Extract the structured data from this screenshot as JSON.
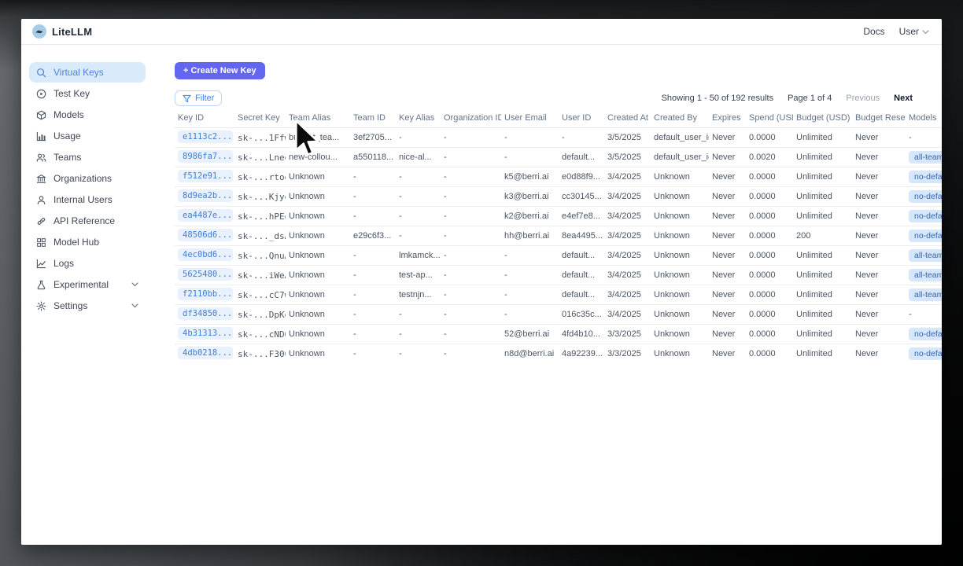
{
  "topbar": {
    "brand": "LiteLLM",
    "docs_link": "Docs",
    "user_label": "User"
  },
  "sidebar": {
    "items": [
      {
        "label": "Virtual Keys",
        "icon": "search-icon",
        "active": true,
        "expandable": false
      },
      {
        "label": "Test Key",
        "icon": "play-circle-icon",
        "active": false,
        "expandable": false
      },
      {
        "label": "Models",
        "icon": "cube-icon",
        "active": false,
        "expandable": false
      },
      {
        "label": "Usage",
        "icon": "bar-chart-icon",
        "active": false,
        "expandable": false
      },
      {
        "label": "Teams",
        "icon": "people-icon",
        "active": false,
        "expandable": false
      },
      {
        "label": "Organizations",
        "icon": "bank-icon",
        "active": false,
        "expandable": false
      },
      {
        "label": "Internal Users",
        "icon": "person-icon",
        "active": false,
        "expandable": false
      },
      {
        "label": "API Reference",
        "icon": "link-icon",
        "active": false,
        "expandable": false
      },
      {
        "label": "Model Hub",
        "icon": "grid-icon",
        "active": false,
        "expandable": false
      },
      {
        "label": "Logs",
        "icon": "line-chart-icon",
        "active": false,
        "expandable": false
      },
      {
        "label": "Experimental",
        "icon": "flask-icon",
        "active": false,
        "expandable": true
      },
      {
        "label": "Settings",
        "icon": "gear-icon",
        "active": false,
        "expandable": true
      }
    ]
  },
  "toolbar": {
    "create_button": "+ Create New Key",
    "filter_button": "Filter"
  },
  "pagination": {
    "showing": "Showing 1 - 50 of 192 results",
    "page": "Page 1 of 4",
    "previous": "Previous",
    "next": "Next"
  },
  "table": {
    "columns": [
      "Key ID",
      "Secret Key",
      "Team Alias",
      "Team ID",
      "Key Alias",
      "Organization ID",
      "User Email",
      "User ID",
      "Created At",
      "Created By",
      "Expires",
      "Spend (USD)",
      "Budget (USD)",
      "Budget Reset",
      "Models"
    ],
    "rows": [
      {
        "key_id": "e1113c2...",
        "secret_key": "sk-...1Ffw",
        "team_alias": "budget_tea...",
        "team_id": "3ef2705...",
        "key_alias": "-",
        "org_id": "-",
        "user_email": "-",
        "user_id": "-",
        "created_at": "3/5/2025",
        "created_by": "default_user_id",
        "expires": "Never",
        "spend": "0.0000",
        "budget": "Unlimited",
        "budget_reset": "Never",
        "models": "-"
      },
      {
        "key_id": "8986fa7...",
        "secret_key": "sk-...Lneg",
        "team_alias": "new-collou...",
        "team_id": "a550118...",
        "key_alias": "nice-al...",
        "org_id": "-",
        "user_email": "-",
        "user_id": "default...",
        "created_at": "3/5/2025",
        "created_by": "default_user_id",
        "expires": "Never",
        "spend": "0.0020",
        "budget": "Unlimited",
        "budget_reset": "Never",
        "models": "all-team-n"
      },
      {
        "key_id": "f512e91...",
        "secret_key": "sk-...rtog",
        "team_alias": "Unknown",
        "team_id": "-",
        "key_alias": "-",
        "org_id": "-",
        "user_email": "k5@berri.ai",
        "user_id": "e0d88f9...",
        "created_at": "3/4/2025",
        "created_by": "Unknown",
        "expires": "Never",
        "spend": "0.0000",
        "budget": "Unlimited",
        "budget_reset": "Never",
        "models": "no-default"
      },
      {
        "key_id": "8d9ea2b...",
        "secret_key": "sk-...Kjyg",
        "team_alias": "Unknown",
        "team_id": "-",
        "key_alias": "-",
        "org_id": "-",
        "user_email": "k3@berri.ai",
        "user_id": "cc30145...",
        "created_at": "3/4/2025",
        "created_by": "Unknown",
        "expires": "Never",
        "spend": "0.0000",
        "budget": "Unlimited",
        "budget_reset": "Never",
        "models": "no-default"
      },
      {
        "key_id": "ea4487e...",
        "secret_key": "sk-...hPEg",
        "team_alias": "Unknown",
        "team_id": "-",
        "key_alias": "-",
        "org_id": "-",
        "user_email": "k2@berri.ai",
        "user_id": "e4ef7e8...",
        "created_at": "3/4/2025",
        "created_by": "Unknown",
        "expires": "Never",
        "spend": "0.0000",
        "budget": "Unlimited",
        "budget_reset": "Never",
        "models": "no-default"
      },
      {
        "key_id": "48506d6...",
        "secret_key": "sk-..._dsA",
        "team_alias": "Unknown",
        "team_id": "e29c6f3...",
        "key_alias": "-",
        "org_id": "-",
        "user_email": "hh@berri.ai",
        "user_id": "8ea4495...",
        "created_at": "3/4/2025",
        "created_by": "Unknown",
        "expires": "Never",
        "spend": "0.0000",
        "budget": "200",
        "budget_reset": "Never",
        "models": "no-default"
      },
      {
        "key_id": "4ec0bd6...",
        "secret_key": "sk-...QnuA",
        "team_alias": "Unknown",
        "team_id": "-",
        "key_alias": "lmkamck...",
        "org_id": "-",
        "user_email": "-",
        "user_id": "default...",
        "created_at": "3/4/2025",
        "created_by": "Unknown",
        "expires": "Never",
        "spend": "0.0000",
        "budget": "Unlimited",
        "budget_reset": "Never",
        "models": "all-team-n"
      },
      {
        "key_id": "5625480...",
        "secret_key": "sk-...iWeA",
        "team_alias": "Unknown",
        "team_id": "-",
        "key_alias": "test-ap...",
        "org_id": "-",
        "user_email": "-",
        "user_id": "default...",
        "created_at": "3/4/2025",
        "created_by": "Unknown",
        "expires": "Never",
        "spend": "0.0000",
        "budget": "Unlimited",
        "budget_reset": "Never",
        "models": "all-team-n"
      },
      {
        "key_id": "f2110bb...",
        "secret_key": "sk-...cC7w",
        "team_alias": "Unknown",
        "team_id": "-",
        "key_alias": "testnjn...",
        "org_id": "-",
        "user_email": "-",
        "user_id": "default...",
        "created_at": "3/4/2025",
        "created_by": "Unknown",
        "expires": "Never",
        "spend": "0.0000",
        "budget": "Unlimited",
        "budget_reset": "Never",
        "models": "all-team-n"
      },
      {
        "key_id": "df34850...",
        "secret_key": "sk-...DpKg",
        "team_alias": "Unknown",
        "team_id": "-",
        "key_alias": "-",
        "org_id": "-",
        "user_email": "-",
        "user_id": "016c35c...",
        "created_at": "3/4/2025",
        "created_by": "Unknown",
        "expires": "Never",
        "spend": "0.0000",
        "budget": "Unlimited",
        "budget_reset": "Never",
        "models": "-"
      },
      {
        "key_id": "4b31313...",
        "secret_key": "sk-...cNDQ",
        "team_alias": "Unknown",
        "team_id": "-",
        "key_alias": "-",
        "org_id": "-",
        "user_email": "52@berri.ai",
        "user_id": "4fd4b10...",
        "created_at": "3/3/2025",
        "created_by": "Unknown",
        "expires": "Never",
        "spend": "0.0000",
        "budget": "Unlimited",
        "budget_reset": "Never",
        "models": "no-default"
      },
      {
        "key_id": "4db0218...",
        "secret_key": "sk-...F300",
        "team_alias": "Unknown",
        "team_id": "-",
        "key_alias": "-",
        "org_id": "-",
        "user_email": "n8d@berri.ai",
        "user_id": "4a92239...",
        "created_at": "3/3/2025",
        "created_by": "Unknown",
        "expires": "Never",
        "spend": "0.0000",
        "budget": "Unlimited",
        "budget_reset": "Never",
        "models": "no-default"
      }
    ]
  },
  "colors": {
    "accent_indigo": "#6366f1",
    "accent_blue": "#3b82f6",
    "active_item_bg": "#d9eafb",
    "chip_bg": "#e8f1fd",
    "model_chip_bg": "#d7e7fb"
  }
}
